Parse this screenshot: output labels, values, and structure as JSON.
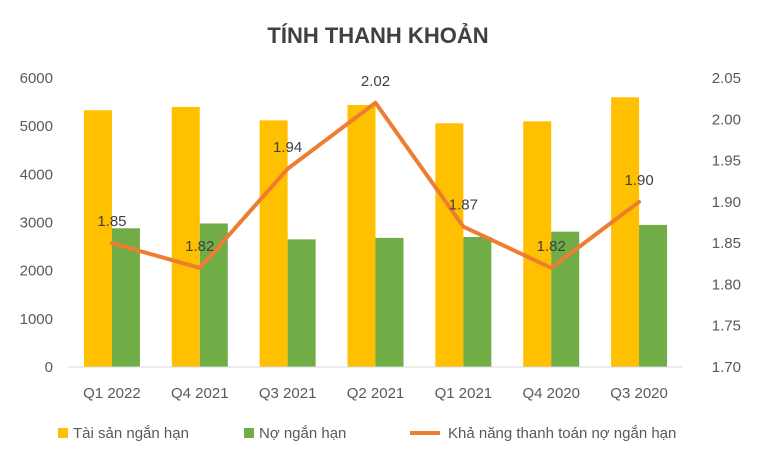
{
  "chart_data": {
    "type": "bar",
    "title": "TÍNH THANH KHOẢN",
    "categories": [
      "Q1 2022",
      "Q4 2021",
      "Q3 2021",
      "Q2 2021",
      "Q1 2021",
      "Q4 2020",
      "Q3 2020"
    ],
    "series": [
      {
        "name": "Tài sản ngắn hạn",
        "type": "bar",
        "axis": "left",
        "color": "#FFC000",
        "values": [
          5330,
          5400,
          5120,
          5440,
          5060,
          5100,
          5600
        ]
      },
      {
        "name": "Nợ ngắn hạn",
        "type": "bar",
        "axis": "left",
        "color": "#70AD47",
        "values": [
          2880,
          2980,
          2650,
          2680,
          2700,
          2810,
          2950
        ]
      },
      {
        "name": "Khả năng thanh toán nợ ngắn hạn",
        "type": "line",
        "axis": "right",
        "color": "#ED7D31",
        "values": [
          1.85,
          1.82,
          1.94,
          2.02,
          1.87,
          1.82,
          1.9
        ],
        "labels": [
          "1.85",
          "1.82",
          "1.94",
          "2.02",
          "1.87",
          "1.82",
          "1.90"
        ]
      }
    ],
    "y_left": {
      "min": 0,
      "max": 6000,
      "ticks": [
        "0",
        "1000",
        "2000",
        "3000",
        "4000",
        "5000",
        "6000"
      ]
    },
    "y_right": {
      "min": 1.7,
      "max": 2.05,
      "ticks": [
        "1.70",
        "1.75",
        "1.80",
        "1.85",
        "1.90",
        "1.95",
        "2.00",
        "2.05"
      ]
    },
    "grid": false,
    "legend_position": "bottom"
  }
}
